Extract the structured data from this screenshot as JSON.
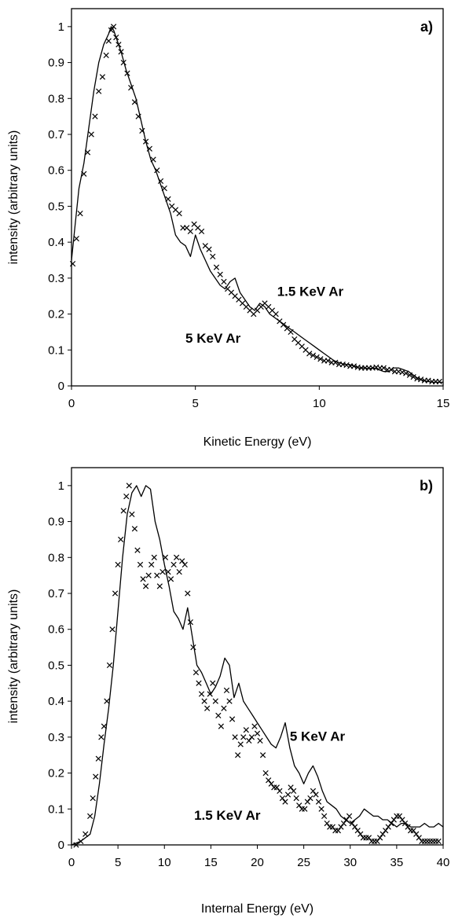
{
  "chart_data": [
    {
      "type": "line",
      "panel_label": "a)",
      "xlabel": "Kinetic Energy (eV)",
      "ylabel": "intensity (arbitrary units)",
      "xlim": [
        0,
        15
      ],
      "ylim": [
        0,
        1.05
      ],
      "xticks": [
        0,
        5,
        10,
        15
      ],
      "xtick_labels": [
        "0",
        "5",
        "10",
        "15"
      ],
      "yticks": [
        0,
        0.1,
        0.2,
        0.3,
        0.4,
        0.5,
        0.6,
        0.7,
        0.8,
        0.9,
        1
      ],
      "ytick_labels": [
        "0",
        "0.1",
        "0.2",
        "0.3",
        "0.4",
        "0.5",
        "0.6",
        "0.7",
        "0.8",
        "0.9",
        "1"
      ],
      "grid": false,
      "annotations": [
        {
          "text": "1.5 KeV Ar",
          "x": 8.3,
          "y": 0.25
        },
        {
          "text": "5 KeV Ar",
          "x": 4.6,
          "y": 0.12
        }
      ],
      "series": [
        {
          "label": "5 KeV Ar",
          "marker": "line",
          "x": [
            0,
            0.15,
            0.3,
            0.5,
            0.7,
            0.9,
            1.1,
            1.3,
            1.5,
            1.6,
            1.7,
            1.8,
            2.0,
            2.2,
            2.4,
            2.6,
            2.8,
            3.0,
            3.2,
            3.4,
            3.6,
            3.8,
            4.0,
            4.2,
            4.4,
            4.6,
            4.8,
            5.0,
            5.2,
            5.4,
            5.6,
            5.8,
            6.0,
            6.2,
            6.4,
            6.6,
            6.8,
            7.0,
            7.2,
            7.4,
            7.6,
            7.8,
            8.0,
            8.2,
            8.4,
            8.6,
            8.8,
            9.0,
            9.2,
            9.4,
            9.6,
            9.8,
            10.0,
            10.2,
            10.4,
            10.6,
            10.8,
            11.0,
            11.2,
            11.4,
            11.6,
            11.8,
            12.0,
            12.2,
            12.4,
            12.6,
            12.8,
            13.0,
            13.2,
            13.4,
            13.6,
            13.8,
            14.0,
            14.2,
            14.4,
            14.6,
            14.8,
            15.0
          ],
          "y": [
            0.35,
            0.45,
            0.55,
            0.62,
            0.72,
            0.82,
            0.9,
            0.95,
            0.98,
            1.0,
            0.99,
            0.97,
            0.93,
            0.88,
            0.84,
            0.8,
            0.74,
            0.68,
            0.63,
            0.6,
            0.56,
            0.52,
            0.48,
            0.42,
            0.4,
            0.39,
            0.36,
            0.42,
            0.38,
            0.35,
            0.32,
            0.3,
            0.28,
            0.27,
            0.29,
            0.3,
            0.26,
            0.24,
            0.22,
            0.21,
            0.23,
            0.22,
            0.2,
            0.19,
            0.18,
            0.17,
            0.16,
            0.15,
            0.14,
            0.13,
            0.12,
            0.11,
            0.1,
            0.09,
            0.08,
            0.07,
            0.065,
            0.06,
            0.06,
            0.055,
            0.05,
            0.05,
            0.048,
            0.05,
            0.045,
            0.04,
            0.04,
            0.05,
            0.05,
            0.045,
            0.04,
            0.03,
            0.02,
            0.015,
            0.012,
            0.01,
            0.01,
            0.01
          ]
        },
        {
          "label": "1.5 KeV Ar",
          "marker": "x",
          "x": [
            0.05,
            0.2,
            0.35,
            0.5,
            0.65,
            0.8,
            0.95,
            1.1,
            1.25,
            1.4,
            1.5,
            1.6,
            1.7,
            1.8,
            1.9,
            2.0,
            2.1,
            2.25,
            2.4,
            2.55,
            2.7,
            2.85,
            3.0,
            3.15,
            3.3,
            3.45,
            3.6,
            3.75,
            3.9,
            4.05,
            4.2,
            4.35,
            4.5,
            4.65,
            4.8,
            4.95,
            5.1,
            5.25,
            5.4,
            5.55,
            5.7,
            5.85,
            6.0,
            6.15,
            6.3,
            6.45,
            6.6,
            6.75,
            6.9,
            7.05,
            7.2,
            7.35,
            7.5,
            7.65,
            7.8,
            7.95,
            8.1,
            8.25,
            8.4,
            8.55,
            8.7,
            8.85,
            9.0,
            9.15,
            9.3,
            9.45,
            9.6,
            9.75,
            9.9,
            10.05,
            10.2,
            10.35,
            10.5,
            10.65,
            10.8,
            10.95,
            11.1,
            11.25,
            11.4,
            11.55,
            11.7,
            11.85,
            12.0,
            12.15,
            12.3,
            12.45,
            12.6,
            12.75,
            12.9,
            13.05,
            13.2,
            13.35,
            13.5,
            13.65,
            13.8,
            13.95,
            14.1,
            14.25,
            14.4,
            14.55,
            14.7,
            14.85
          ],
          "y": [
            0.34,
            0.41,
            0.48,
            0.59,
            0.65,
            0.7,
            0.75,
            0.82,
            0.86,
            0.92,
            0.96,
            0.99,
            1.0,
            0.97,
            0.95,
            0.93,
            0.9,
            0.87,
            0.83,
            0.79,
            0.75,
            0.71,
            0.68,
            0.66,
            0.63,
            0.6,
            0.57,
            0.55,
            0.52,
            0.5,
            0.49,
            0.48,
            0.44,
            0.44,
            0.43,
            0.45,
            0.44,
            0.43,
            0.39,
            0.38,
            0.36,
            0.33,
            0.31,
            0.29,
            0.27,
            0.26,
            0.25,
            0.24,
            0.23,
            0.22,
            0.21,
            0.2,
            0.21,
            0.22,
            0.23,
            0.22,
            0.21,
            0.2,
            0.18,
            0.17,
            0.16,
            0.15,
            0.13,
            0.12,
            0.11,
            0.1,
            0.09,
            0.085,
            0.08,
            0.075,
            0.07,
            0.07,
            0.065,
            0.065,
            0.06,
            0.06,
            0.058,
            0.055,
            0.055,
            0.052,
            0.05,
            0.05,
            0.05,
            0.05,
            0.052,
            0.05,
            0.05,
            0.045,
            0.045,
            0.04,
            0.04,
            0.038,
            0.035,
            0.03,
            0.025,
            0.02,
            0.018,
            0.015,
            0.015,
            0.012,
            0.012,
            0.012
          ]
        }
      ]
    },
    {
      "type": "line",
      "panel_label": "b)",
      "xlabel": "Internal Energy (eV)",
      "ylabel": "intensity (arbitrary units)",
      "xlim": [
        0,
        40
      ],
      "ylim": [
        0,
        1.05
      ],
      "xticks": [
        0,
        5,
        10,
        15,
        20,
        25,
        30,
        35,
        40
      ],
      "xtick_labels": [
        "0",
        "5",
        "10",
        "15",
        "20",
        "25",
        "30",
        "35",
        "40"
      ],
      "yticks": [
        0,
        0.1,
        0.2,
        0.3,
        0.4,
        0.5,
        0.6,
        0.7,
        0.8,
        0.9,
        1
      ],
      "ytick_labels": [
        "0",
        "0.1",
        "0.2",
        "0.3",
        "0.4",
        "0.5",
        "0.6",
        "0.7",
        "0.8",
        "0.9",
        "1"
      ],
      "grid": false,
      "annotations": [
        {
          "text": "5 KeV Ar",
          "x": 23.5,
          "y": 0.29
        },
        {
          "text": "1.5 KeV Ar",
          "x": 13.2,
          "y": 0.07
        }
      ],
      "series": [
        {
          "label": "5 KeV Ar",
          "marker": "line",
          "x": [
            0,
            1,
            2,
            2.5,
            3,
            3.5,
            4,
            4.5,
            5,
            5.5,
            6,
            6.5,
            7,
            7.5,
            8,
            8.5,
            9,
            9.5,
            10,
            10.5,
            11,
            11.5,
            12,
            12.5,
            13,
            13.5,
            14,
            14.5,
            15,
            15.5,
            16,
            16.5,
            17,
            17.5,
            18,
            18.5,
            19,
            19.5,
            20,
            20.5,
            21,
            21.5,
            22,
            22.5,
            23,
            23.5,
            24,
            24.5,
            25,
            25.5,
            26,
            26.5,
            27,
            27.5,
            28,
            28.5,
            29,
            29.5,
            30,
            30.5,
            31,
            31.5,
            32,
            32.5,
            33,
            33.5,
            34,
            34.5,
            35,
            35.5,
            36,
            36.5,
            37,
            37.5,
            38,
            38.5,
            39,
            39.5,
            40
          ],
          "y": [
            0.0,
            0.01,
            0.03,
            0.08,
            0.17,
            0.28,
            0.38,
            0.5,
            0.65,
            0.8,
            0.92,
            0.98,
            1.0,
            0.97,
            1.0,
            0.99,
            0.9,
            0.85,
            0.78,
            0.72,
            0.65,
            0.63,
            0.6,
            0.66,
            0.58,
            0.5,
            0.48,
            0.45,
            0.42,
            0.44,
            0.47,
            0.52,
            0.5,
            0.41,
            0.45,
            0.4,
            0.38,
            0.36,
            0.34,
            0.32,
            0.3,
            0.28,
            0.27,
            0.3,
            0.34,
            0.27,
            0.22,
            0.2,
            0.17,
            0.2,
            0.22,
            0.19,
            0.15,
            0.12,
            0.11,
            0.1,
            0.08,
            0.07,
            0.06,
            0.07,
            0.08,
            0.1,
            0.09,
            0.08,
            0.08,
            0.07,
            0.07,
            0.06,
            0.05,
            0.06,
            0.06,
            0.05,
            0.05,
            0.05,
            0.06,
            0.05,
            0.05,
            0.06,
            0.05
          ]
        },
        {
          "label": "1.5 KeV Ar",
          "marker": "x",
          "x": [
            0.5,
            1.0,
            1.5,
            2.0,
            2.3,
            2.6,
            2.9,
            3.2,
            3.5,
            3.8,
            4.1,
            4.4,
            4.7,
            5.0,
            5.3,
            5.6,
            5.9,
            6.2,
            6.5,
            6.8,
            7.1,
            7.4,
            7.7,
            8.0,
            8.3,
            8.6,
            8.9,
            9.2,
            9.5,
            9.8,
            10.1,
            10.4,
            10.7,
            11.0,
            11.3,
            11.6,
            11.9,
            12.2,
            12.5,
            12.8,
            13.1,
            13.4,
            13.7,
            14.0,
            14.3,
            14.6,
            14.9,
            15.2,
            15.5,
            15.8,
            16.1,
            16.4,
            16.7,
            17.0,
            17.3,
            17.6,
            17.9,
            18.2,
            18.5,
            18.8,
            19.1,
            19.4,
            19.7,
            20.0,
            20.3,
            20.6,
            20.9,
            21.2,
            21.5,
            21.8,
            22.1,
            22.4,
            22.7,
            23.0,
            23.3,
            23.6,
            23.9,
            24.2,
            24.5,
            24.8,
            25.1,
            25.4,
            25.7,
            26.0,
            26.3,
            26.6,
            26.9,
            27.2,
            27.5,
            27.8,
            28.1,
            28.4,
            28.7,
            29.0,
            29.3,
            29.6,
            29.9,
            30.2,
            30.5,
            30.8,
            31.1,
            31.4,
            31.7,
            32.0,
            32.3,
            32.6,
            32.9,
            33.2,
            33.5,
            33.8,
            34.1,
            34.4,
            34.7,
            35.0,
            35.3,
            35.6,
            35.9,
            36.2,
            36.5,
            36.8,
            37.1,
            37.4,
            37.7,
            38.0,
            38.3,
            38.6,
            38.9,
            39.2,
            39.5
          ],
          "y": [
            0.0,
            0.01,
            0.03,
            0.08,
            0.13,
            0.19,
            0.24,
            0.3,
            0.33,
            0.4,
            0.5,
            0.6,
            0.7,
            0.78,
            0.85,
            0.93,
            0.97,
            1.0,
            0.92,
            0.88,
            0.82,
            0.78,
            0.74,
            0.72,
            0.75,
            0.78,
            0.8,
            0.75,
            0.72,
            0.76,
            0.8,
            0.76,
            0.74,
            0.78,
            0.8,
            0.76,
            0.79,
            0.78,
            0.7,
            0.62,
            0.55,
            0.48,
            0.45,
            0.42,
            0.4,
            0.38,
            0.42,
            0.45,
            0.4,
            0.36,
            0.33,
            0.38,
            0.43,
            0.4,
            0.35,
            0.3,
            0.25,
            0.28,
            0.3,
            0.32,
            0.29,
            0.3,
            0.33,
            0.31,
            0.29,
            0.25,
            0.2,
            0.18,
            0.17,
            0.16,
            0.16,
            0.15,
            0.13,
            0.12,
            0.14,
            0.16,
            0.15,
            0.13,
            0.11,
            0.1,
            0.1,
            0.12,
            0.13,
            0.15,
            0.14,
            0.12,
            0.1,
            0.08,
            0.06,
            0.05,
            0.05,
            0.04,
            0.04,
            0.05,
            0.06,
            0.07,
            0.08,
            0.06,
            0.05,
            0.04,
            0.03,
            0.02,
            0.02,
            0.02,
            0.01,
            0.01,
            0.01,
            0.02,
            0.03,
            0.04,
            0.05,
            0.06,
            0.07,
            0.08,
            0.08,
            0.07,
            0.06,
            0.05,
            0.04,
            0.04,
            0.03,
            0.02,
            0.01,
            0.01,
            0.01,
            0.01,
            0.01,
            0.01,
            0.01
          ]
        }
      ]
    }
  ]
}
